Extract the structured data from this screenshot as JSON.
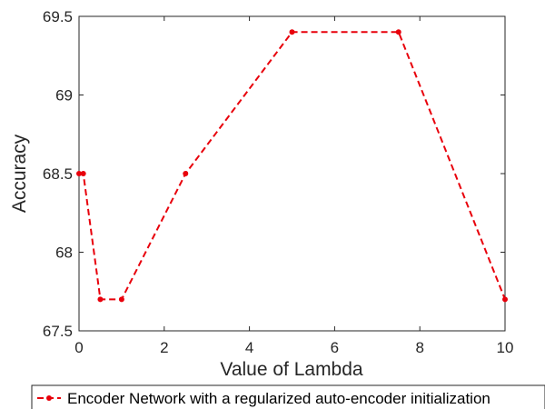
{
  "chart_data": {
    "type": "line",
    "xlabel": "Value of Lambda",
    "ylabel": "Accuracy",
    "xlim": [
      0,
      10
    ],
    "ylim": [
      67.5,
      69.5
    ],
    "xticks": [
      0,
      2,
      4,
      6,
      8,
      10
    ],
    "yticks": [
      67.5,
      68,
      68.5,
      69,
      69.5
    ],
    "xtick_labels": [
      "0",
      "2",
      "4",
      "6",
      "8",
      "10"
    ],
    "ytick_labels": [
      "67.5",
      "68",
      "68.5",
      "69",
      "69.5"
    ],
    "grid": false,
    "legend_position": "bottom",
    "series": [
      {
        "name": "Encoder Network with a regularized auto-encoder initialization",
        "color": "#e8000b",
        "line_style": "dashed",
        "marker": "circle",
        "x": [
          0,
          0.1,
          0.5,
          1,
          2.5,
          5,
          7.5,
          10
        ],
        "y": [
          68.5,
          68.5,
          67.7,
          67.7,
          68.5,
          69.4,
          69.4,
          67.7
        ]
      }
    ]
  }
}
